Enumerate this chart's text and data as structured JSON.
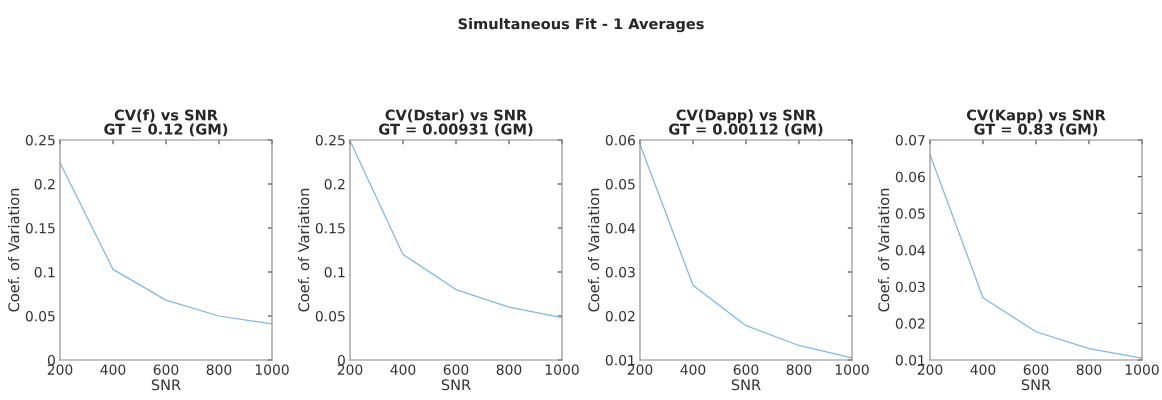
{
  "chart_data": [
    {
      "type": "line",
      "title": "CV(f) vs SNR",
      "subtitle": "GT = 0.12 (GM)",
      "annotations": [
        "Simultaneous Fit - 1 Averages"
      ],
      "xlabel": "SNR",
      "ylabel": "Coef. of Variation",
      "x": [
        200,
        400,
        600,
        800,
        1000
      ],
      "series": [
        {
          "color": "#7db8e8",
          "values": [
            0.224,
            0.103,
            0.068,
            0.05,
            0.041
          ]
        }
      ],
      "xlim": [
        200,
        1000
      ],
      "xticks": [
        200,
        400,
        600,
        800,
        1000
      ],
      "ylim": [
        0,
        0.25
      ],
      "yticks": [
        0,
        0.05,
        0.1,
        0.15,
        0.2,
        0.25
      ],
      "grid": false
    },
    {
      "type": "line",
      "title": "CV(Dstar) vs SNR",
      "subtitle": "GT = 0.00931 (GM)",
      "xlabel": "SNR",
      "ylabel": "Coef. of Variation",
      "x": [
        200,
        400,
        600,
        800,
        1000
      ],
      "series": [
        {
          "color": "#7db8e8",
          "values": [
            0.249,
            0.12,
            0.08,
            0.06,
            0.048
          ]
        }
      ],
      "xlim": [
        200,
        1000
      ],
      "xticks": [
        200,
        400,
        600,
        800,
        1000
      ],
      "ylim": [
        0,
        0.25
      ],
      "yticks": [
        0,
        0.05,
        0.1,
        0.15,
        0.2,
        0.25
      ],
      "grid": false
    },
    {
      "type": "line",
      "title": "CV(Dapp) vs SNR",
      "subtitle": "GT = 0.00112 (GM)",
      "xlabel": "SNR",
      "ylabel": "Coef. of Variation",
      "x": [
        200,
        400,
        600,
        800,
        1000
      ],
      "series": [
        {
          "color": "#7db8e8",
          "values": [
            0.059,
            0.027,
            0.0178,
            0.0133,
            0.0105
          ]
        }
      ],
      "xlim": [
        200,
        1000
      ],
      "xticks": [
        200,
        400,
        600,
        800,
        1000
      ],
      "ylim": [
        0.01,
        0.06
      ],
      "yticks": [
        0.01,
        0.02,
        0.03,
        0.04,
        0.05,
        0.06
      ],
      "grid": false
    },
    {
      "type": "line",
      "title": "CV(Kapp) vs SNR",
      "subtitle": "GT = 0.83 (GM)",
      "xlabel": "SNR",
      "ylabel": "Coef. of Variation",
      "x": [
        200,
        400,
        600,
        800,
        1000
      ],
      "series": [
        {
          "color": "#7db8e8",
          "values": [
            0.066,
            0.027,
            0.0177,
            0.0131,
            0.0105
          ]
        }
      ],
      "xlim": [
        200,
        1000
      ],
      "xticks": [
        200,
        400,
        600,
        800,
        1000
      ],
      "ylim": [
        0.01,
        0.07
      ],
      "yticks": [
        0.01,
        0.02,
        0.03,
        0.04,
        0.05,
        0.06,
        0.07
      ],
      "grid": false
    }
  ]
}
